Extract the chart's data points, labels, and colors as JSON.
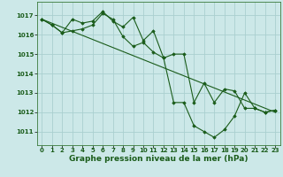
{
  "bg_color": "#cce8e8",
  "grid_color": "#aacfcf",
  "line_color": "#1a5c1a",
  "marker_color": "#1a5c1a",
  "xlabel": "Graphe pression niveau de la mer (hPa)",
  "xlabel_fontsize": 6.5,
  "tick_fontsize": 5.0,
  "xlim": [
    -0.5,
    23.5
  ],
  "ylim": [
    1010.3,
    1017.7
  ],
  "yticks": [
    1011,
    1012,
    1013,
    1014,
    1015,
    1016,
    1017
  ],
  "xticks": [
    0,
    1,
    2,
    3,
    4,
    5,
    6,
    7,
    8,
    9,
    10,
    11,
    12,
    13,
    14,
    15,
    16,
    17,
    18,
    19,
    20,
    21,
    22,
    23
  ],
  "line1_x": [
    0,
    1,
    2,
    3,
    4,
    5,
    6,
    7,
    8,
    9,
    10,
    11,
    12,
    13,
    14,
    15,
    16,
    17,
    18,
    19,
    20,
    21,
    22,
    23
  ],
  "line1_y": [
    1016.8,
    1016.5,
    1016.1,
    1016.8,
    1016.6,
    1016.7,
    1017.2,
    1016.7,
    1016.4,
    1016.9,
    1015.7,
    1016.2,
    1014.8,
    1015.0,
    1015.0,
    1012.5,
    1013.5,
    1012.5,
    1013.2,
    1013.1,
    1012.2,
    1012.2,
    1012.0,
    1012.1
  ],
  "line2_x": [
    0,
    1,
    2,
    3,
    4,
    5,
    6,
    7,
    8,
    9,
    10,
    11,
    12,
    13,
    14,
    15,
    16,
    17,
    18,
    19,
    20,
    21,
    22,
    23
  ],
  "line2_y": [
    1016.8,
    1016.5,
    1016.1,
    1016.2,
    1016.3,
    1016.5,
    1017.1,
    1016.8,
    1015.9,
    1015.4,
    1015.6,
    1015.1,
    1014.8,
    1012.5,
    1012.5,
    1011.3,
    1011.0,
    1010.7,
    1011.1,
    1011.8,
    1013.0,
    1012.2,
    1012.0,
    1012.1
  ],
  "line3_x": [
    0,
    23
  ],
  "line3_y": [
    1016.8,
    1012.0
  ]
}
